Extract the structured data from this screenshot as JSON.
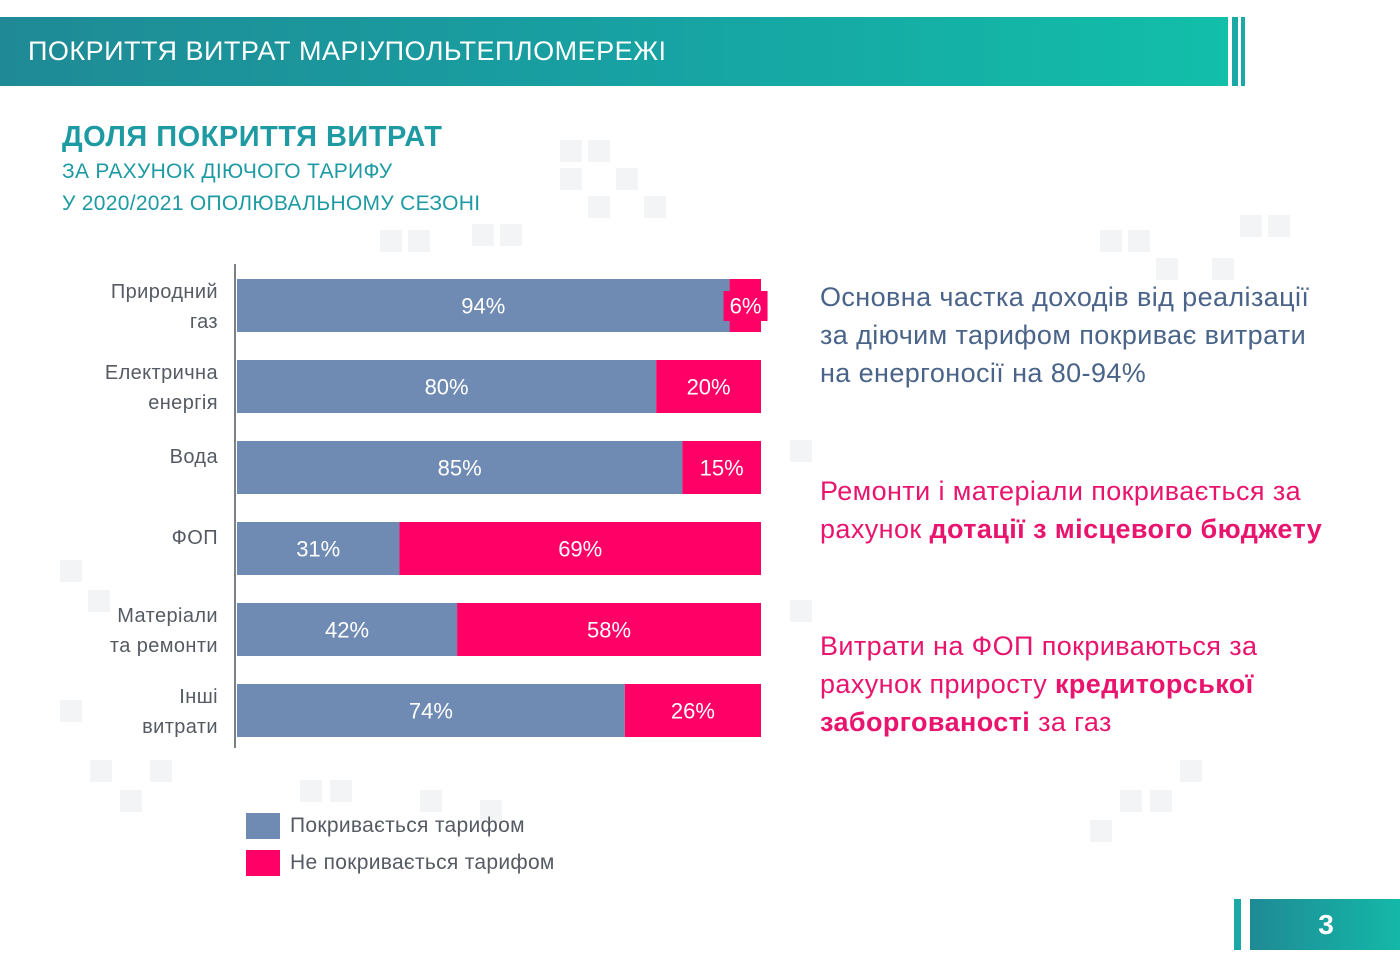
{
  "header": {
    "title": "ПОКРИТТЯ ВИТРАТ МАРІУПОЛЬТЕПЛОМЕРЕЖІ"
  },
  "subtitle": {
    "main": "ДОЛЯ ПОКРИТТЯ ВИТРАТ",
    "line1": "ЗА РАХУНОК ДІЮЧОГО ТАРИФУ",
    "line2": "У 2020/2021 ОПОЛЮВАЛЬНОМУ СЕЗОНІ"
  },
  "chart_data": {
    "type": "bar",
    "orientation": "horizontal",
    "stacked": true,
    "categories": [
      [
        "Природний",
        "газ"
      ],
      [
        "Електрична",
        "енергія"
      ],
      [
        "Вода"
      ],
      [
        "ФОП"
      ],
      [
        "Матеріали",
        "та ремонти"
      ],
      [
        "Інші",
        "витрати"
      ]
    ],
    "series": [
      {
        "name": "Покривається тарифом",
        "color": "#6f8bb3",
        "values": [
          94,
          80,
          85,
          31,
          42,
          74
        ],
        "labels": [
          "94%",
          "80%",
          "85%",
          "31%",
          "42%",
          "74%"
        ]
      },
      {
        "name": "Не покривається тарифом",
        "color": "#ff0066",
        "values": [
          6,
          20,
          15,
          69,
          58,
          26
        ],
        "labels": [
          "6%",
          "20%",
          "15%",
          "69%",
          "58%",
          "26%"
        ]
      }
    ],
    "xlim": [
      0,
      100
    ],
    "grid": false,
    "legend": "bottom-left"
  },
  "info": {
    "p1": "Основна частка доходів від реалізації за діючим тарифом покриває витрати на енергоносії на 80-94%",
    "p2_plain": "Ремонти і матеріали покривається за рахунок ",
    "p2_bold": "дотації з місцевого бюджету",
    "p3_plain": "Витрати на ФОП покриваються за рахунок приросту ",
    "p3_bold": "кредиторської заборгованості",
    "p3_tail": " за газ"
  },
  "page": {
    "number": "3"
  }
}
